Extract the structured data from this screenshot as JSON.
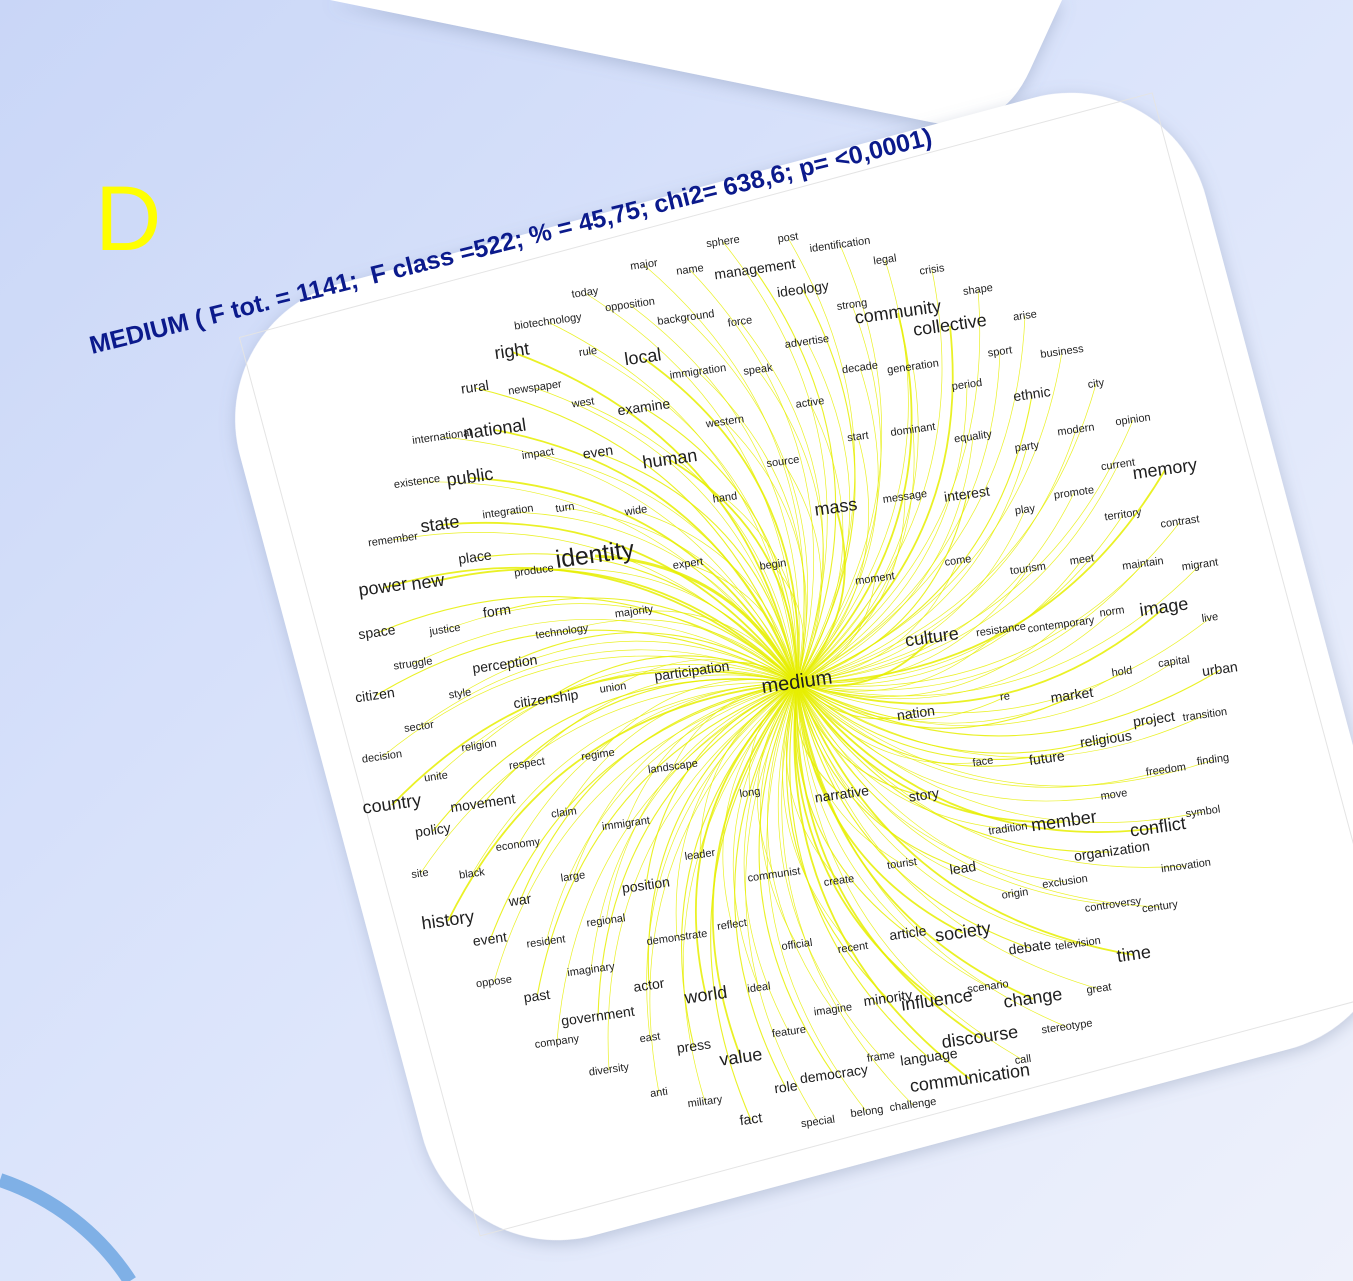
{
  "slide": {
    "letter": "D",
    "title": "MEDIUM ( F tot. = 1141;  F class =522; % = 45,75; chi2= 638,6; p= <0,0001)"
  },
  "graph": {
    "center": "medium",
    "words": [
      "sphere",
      "post",
      "major",
      "name",
      "identification",
      "legal",
      "today",
      "management",
      "crisis",
      "ideology",
      "shape",
      "biotechnology",
      "opposition",
      "background",
      "force",
      "strong",
      "community",
      "arise",
      "right",
      "rule",
      "local",
      "advertise",
      "collective",
      "immigration",
      "speak",
      "decade",
      "generation",
      "sport",
      "business",
      "rural",
      "newspaper",
      "west",
      "examine",
      "active",
      "period",
      "ethnic",
      "city",
      "international",
      "national",
      "western",
      "start",
      "dominant",
      "equality",
      "party",
      "modern",
      "opinion",
      "existence",
      "public",
      "impact",
      "even",
      "human",
      "source",
      "message",
      "interest",
      "current",
      "memory",
      "integration",
      "turn",
      "wide",
      "hand",
      "mass",
      "play",
      "promote",
      "territory",
      "remember",
      "state",
      "contrast",
      "place",
      "produce",
      "identity",
      "expert",
      "begin",
      "moment",
      "come",
      "tourism",
      "meet",
      "maintain",
      "migrant",
      "power",
      "new",
      "form",
      "majority",
      "norm",
      "image",
      "live",
      "space",
      "justice",
      "technology",
      "culture",
      "resistance",
      "contemporary",
      "struggle",
      "perception",
      "participation",
      "capital",
      "urban",
      "hold",
      "citizen",
      "style",
      "union",
      "citizenship",
      "market",
      "re",
      "nation",
      "project",
      "transition",
      "sector",
      "religion",
      "decision",
      "respect",
      "regime",
      "landscape",
      "religious",
      "face",
      "future",
      "finding",
      "freedom",
      "unite",
      "long",
      "narrative",
      "story",
      "move",
      "country",
      "movement",
      "claim",
      "symbol",
      "policy",
      "conflict",
      "immigrant",
      "tradition",
      "member",
      "economy",
      "leader",
      "organization",
      "communist",
      "tourist",
      "lead",
      "site",
      "black",
      "large",
      "create",
      "innovation",
      "position",
      "exclusion",
      "origin",
      "war",
      "controversy",
      "century",
      "history",
      "regional",
      "reflect",
      "article",
      "society",
      "event",
      "resident",
      "demonstrate",
      "debate",
      "television",
      "time",
      "official",
      "recent",
      "oppose",
      "imaginary",
      "actor",
      "scenario",
      "past",
      "great",
      "world",
      "ideal",
      "minority",
      "influence",
      "change",
      "government",
      "imagine",
      "east",
      "feature",
      "company",
      "stereotype",
      "discourse",
      "press",
      "frame",
      "language",
      "value",
      "diversity",
      "democracy",
      "call",
      "communication",
      "role",
      "anti",
      "military",
      "challenge",
      "fact",
      "special",
      "belong"
    ]
  }
}
